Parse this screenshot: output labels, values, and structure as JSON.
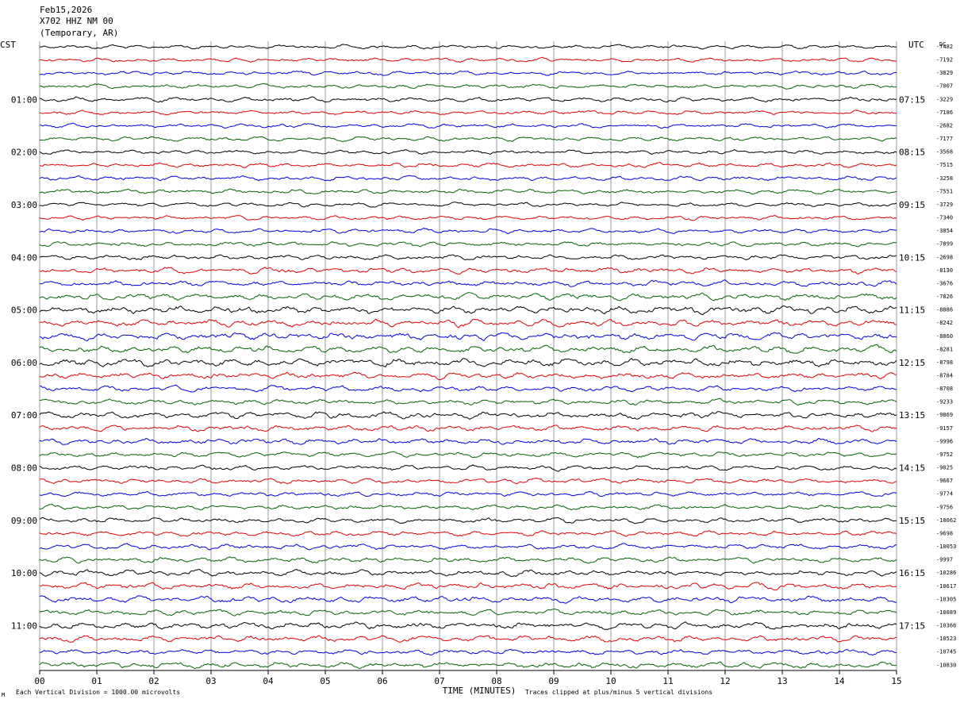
{
  "header": {
    "date": "Feb15,2026",
    "station": "X702 HHZ NM 00",
    "location": "(Temporary, AR)"
  },
  "left_zone_label": "CST",
  "right_zone_label": "UTC",
  "dc_label": "DC",
  "footer": {
    "scale_note": "Each Vertical Division = 1000.00 microvolts",
    "clip_note": "Traces clipped at plus/minus 5 vertical divisions",
    "corner_mark": "M"
  },
  "colors": {
    "cycle": [
      "#000000",
      "#e00000",
      "#0000e0",
      "#006400"
    ],
    "grid": "#808080",
    "background": "#ffffff"
  },
  "chart_data": {
    "type": "line",
    "title": "X702 HHZ NM 00",
    "xlabel": "TIME (MINUTES)",
    "xlim": [
      0,
      15
    ],
    "x_ticks": [
      "00",
      "01",
      "02",
      "03",
      "04",
      "05",
      "06",
      "07",
      "08",
      "09",
      "10",
      "11",
      "12",
      "13",
      "14",
      "15"
    ],
    "rows": 48,
    "row_minutes": 15,
    "left_hour_labels": [
      "01:00",
      "02:00",
      "03:00",
      "04:00",
      "05:00",
      "06:00",
      "07:00",
      "08:00",
      "09:00",
      "10:00",
      "11:00"
    ],
    "right_hour_labels": [
      "07:15",
      "08:15",
      "09:15",
      "10:15",
      "11:15",
      "12:15",
      "13:15",
      "14:15",
      "15:15",
      "16:15",
      "17:15"
    ],
    "hour_label_first_row": 4,
    "hour_label_step": 4,
    "dc_offsets": [
      "-7482",
      "-7192",
      "-3829",
      "-7007",
      "-3229",
      "-7186",
      "-2682",
      "-7177",
      "-3568",
      "-7515",
      "-3258",
      "-7551",
      "-3729",
      "-7340",
      "-3854",
      "-7899",
      "-2698",
      "-8130",
      "-3676",
      "-7826",
      "-8886",
      "-8242",
      "-8860",
      "-8281",
      "-8798",
      "-8784",
      "-8708",
      "-9233",
      "-9869",
      "-9157",
      "-9996",
      "-9752",
      "-9025",
      "-9667",
      "-9774",
      "-9756",
      "-10062",
      "-9698",
      "-10053",
      "-9997",
      "-10286",
      "-10617",
      "-10305",
      "-10089",
      "-10366",
      "-10523",
      "-10745",
      "-10830"
    ],
    "activity": [
      1.0,
      1.0,
      1.0,
      1.0,
      1.1,
      1.0,
      1.0,
      1.0,
      1.0,
      1.1,
      1.1,
      1.1,
      1.0,
      1.0,
      1.1,
      1.1,
      1.2,
      1.4,
      1.5,
      1.6,
      1.9,
      1.7,
      1.8,
      1.7,
      1.9,
      1.5,
      1.4,
      1.3,
      1.6,
      1.4,
      1.4,
      1.2,
      1.2,
      1.2,
      1.1,
      1.1,
      1.2,
      1.2,
      1.3,
      1.3,
      1.5,
      1.5,
      1.6,
      1.4,
      1.6,
      1.5,
      1.3,
      1.5
    ]
  }
}
